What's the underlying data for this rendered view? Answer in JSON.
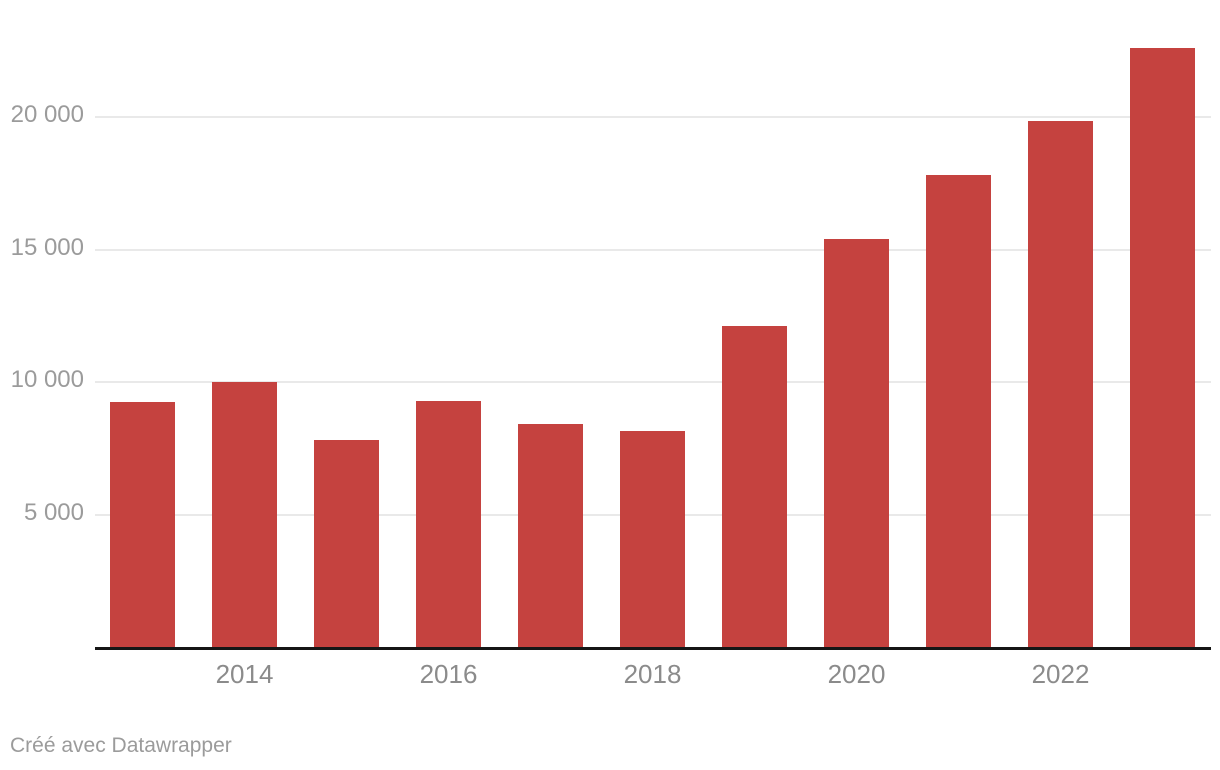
{
  "chart_data": {
    "type": "bar",
    "categories": [
      "2013",
      "2014",
      "2015",
      "2016",
      "2017",
      "2018",
      "2019",
      "2020",
      "2021",
      "2022",
      "2023"
    ],
    "values": [
      9250,
      10000,
      7800,
      9300,
      8400,
      8150,
      12100,
      15400,
      17800,
      19850,
      22600
    ],
    "title": "",
    "xlabel": "",
    "ylabel": "",
    "ylim": [
      0,
      22600
    ],
    "grid": "horizontal",
    "legend": "none",
    "y_ticks": [
      {
        "value": 5000,
        "label": "5 000"
      },
      {
        "value": 10000,
        "label": "10 000"
      },
      {
        "value": 15000,
        "label": "15 000"
      },
      {
        "value": 20000,
        "label": "20 000"
      }
    ],
    "x_ticks": [
      {
        "bar_index": 1,
        "label": "2014"
      },
      {
        "bar_index": 3,
        "label": "2016"
      },
      {
        "bar_index": 5,
        "label": "2018"
      },
      {
        "bar_index": 7,
        "label": "2020"
      },
      {
        "bar_index": 9,
        "label": "2022"
      }
    ]
  },
  "colors": {
    "bar": "#c5423f",
    "grid": "#e9e9e9",
    "y_label": "#9b9b9b",
    "x_label": "#8b8b8b",
    "baseline": "#161616",
    "footer": "#9b9b9b",
    "background": "#ffffff"
  },
  "footer": {
    "credit": "Créé avec Datawrapper"
  }
}
